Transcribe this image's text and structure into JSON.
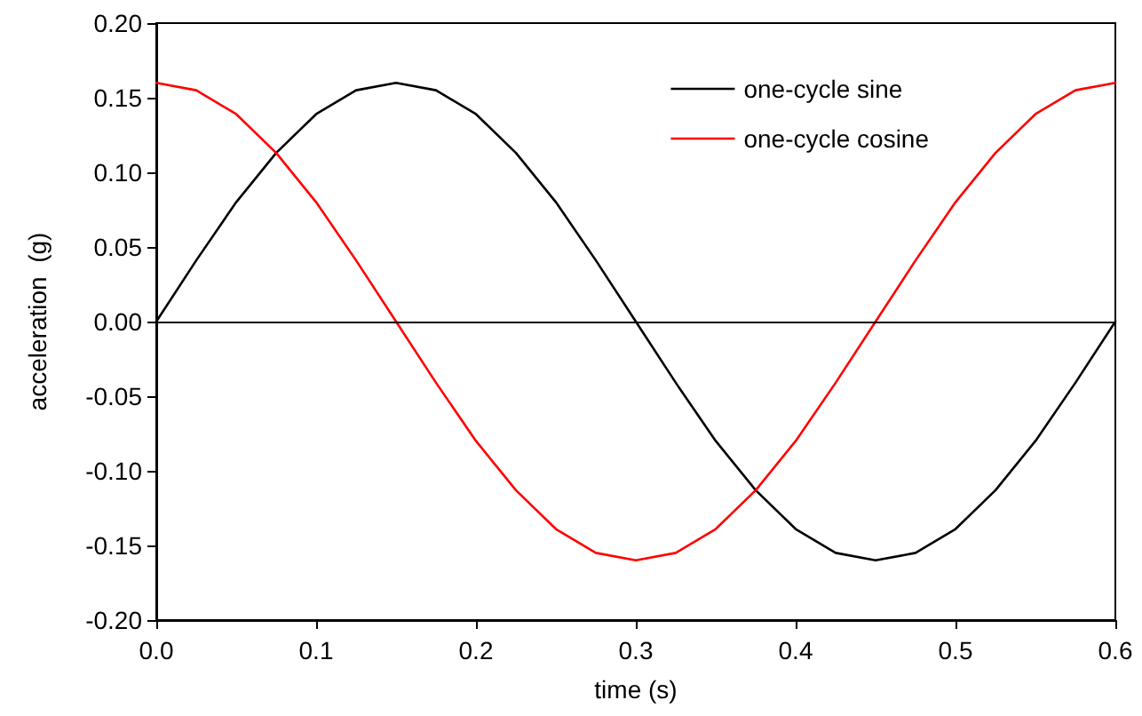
{
  "chart_data": {
    "type": "line",
    "xlabel": "time (s)",
    "ylabel": "acceleration  (g)",
    "x": [
      0,
      0.025,
      0.05,
      0.075,
      0.1,
      0.125,
      0.15,
      0.175,
      0.2,
      0.225,
      0.25,
      0.275,
      0.3,
      0.325,
      0.35,
      0.375,
      0.4,
      0.425,
      0.45,
      0.475,
      0.5,
      0.525,
      0.55,
      0.575,
      0.6
    ],
    "series": [
      {
        "name": "one-cycle sine",
        "color": "#000000",
        "values": [
          0,
          0.041,
          0.08,
          0.113,
          0.139,
          0.155,
          0.16,
          0.155,
          0.139,
          0.113,
          0.08,
          0.041,
          0,
          -0.041,
          -0.08,
          -0.113,
          -0.139,
          -0.155,
          -0.16,
          -0.155,
          -0.139,
          -0.113,
          -0.08,
          -0.041,
          0
        ]
      },
      {
        "name": "one-cycle cosine",
        "color": "#ff0000",
        "values": [
          0.16,
          0.155,
          0.139,
          0.113,
          0.08,
          0.041,
          0,
          -0.041,
          -0.08,
          -0.113,
          -0.139,
          -0.155,
          -0.16,
          -0.155,
          -0.139,
          -0.113,
          -0.08,
          -0.041,
          0,
          0.041,
          0.08,
          0.113,
          0.139,
          0.155,
          0.16
        ]
      }
    ],
    "xlim": [
      0,
      0.6
    ],
    "xticks": [
      {
        "value": 0,
        "label": "0.0"
      },
      0.1,
      0.2,
      0.3,
      0.4,
      0.5,
      0.6
    ],
    "ylim": [
      -0.2,
      0.2
    ],
    "yticks": [
      {
        "value": -0.2,
        "label": "-0.20"
      },
      {
        "value": -0.15,
        "label": "-0.15"
      },
      {
        "value": -0.1,
        "label": "-0.10"
      },
      {
        "value": -0.05,
        "label": "-0.05"
      },
      {
        "value": 0,
        "label": "0.00"
      },
      {
        "value": 0.05,
        "label": "0.05"
      },
      {
        "value": 0.1,
        "label": "0.10"
      },
      {
        "value": 0.15,
        "label": "0.15"
      },
      {
        "value": 0.2,
        "label": "0.20"
      }
    ],
    "ref_lines": [
      {
        "axis": "y",
        "value": 0,
        "color": "#000000"
      }
    ],
    "grid": false,
    "legend": "top right",
    "marker": "none",
    "line_style": "solid"
  }
}
